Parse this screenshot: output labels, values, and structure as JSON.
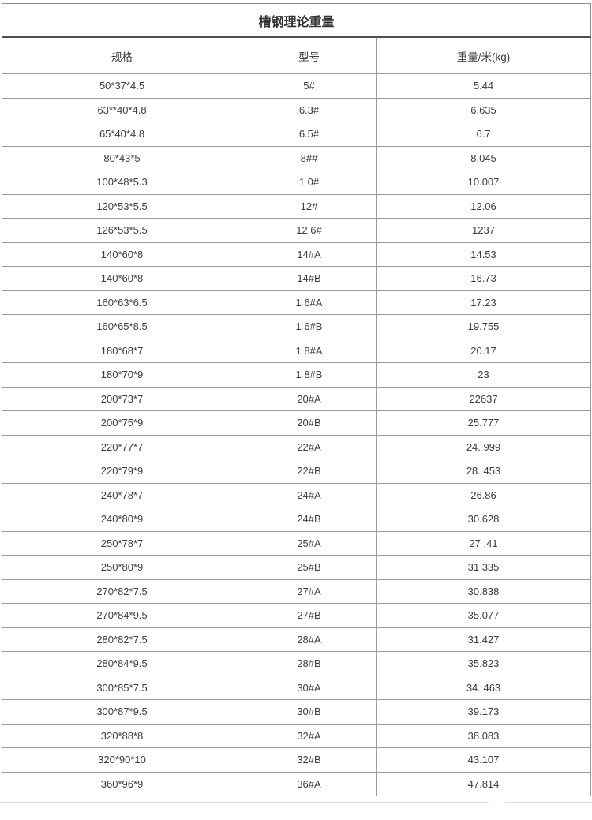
{
  "table": {
    "title": "槽钢理论重量",
    "headers": [
      "规格",
      "型号",
      "重量/米(kg)"
    ],
    "rows": [
      [
        "50*37*4.5",
        "5#",
        "5.44"
      ],
      [
        "63**40*4.8",
        "6.3#",
        "6.635"
      ],
      [
        "65*40*4.8",
        "6.5#",
        "6.7"
      ],
      [
        "80*43*5",
        "8##",
        "8,045"
      ],
      [
        "100*48*5.3",
        "1 0#",
        "10.007"
      ],
      [
        "120*53*5.5",
        "12#",
        "12.06"
      ],
      [
        "126*53*5.5",
        "12.6#",
        "1237"
      ],
      [
        "140*60*8",
        "14#A",
        "14.53"
      ],
      [
        "140*60*8",
        "14#B",
        "16.73"
      ],
      [
        "160*63*6.5",
        "1 6#A",
        "17.23"
      ],
      [
        "160*65*8.5",
        "1 6#B",
        "19.755"
      ],
      [
        "180*68*7",
        "1 8#A",
        "20.17"
      ],
      [
        "180*70*9",
        "1 8#B",
        "23"
      ],
      [
        "200*73*7",
        "20#A",
        "22637"
      ],
      [
        "200*75*9",
        "20#B",
        "25.777"
      ],
      [
        "220*77*7",
        "22#A",
        "24. 999"
      ],
      [
        "220*79*9",
        "22#B",
        "28. 453"
      ],
      [
        "240*78*7",
        "24#A",
        "26.86"
      ],
      [
        "240*80*9",
        "24#B",
        "30.628"
      ],
      [
        "250*78*7",
        "25#A",
        "27 ,41"
      ],
      [
        "250*80*9",
        "25#B",
        "31 335"
      ],
      [
        "270*82*7.5",
        "27#A",
        "30.838"
      ],
      [
        "270*84*9.5",
        "27#B",
        "35.077"
      ],
      [
        "280*82*7.5",
        "28#A",
        "31.427"
      ],
      [
        "280*84*9.5",
        "28#B",
        "35.823"
      ],
      [
        "300*85*7.5",
        "30#A",
        "34. 463"
      ],
      [
        "300*87*9.5",
        "30#B",
        "39.173"
      ],
      [
        "320*88*8",
        "32#A",
        "38.083"
      ],
      [
        "320*90*10",
        "32#B",
        "43.107"
      ],
      [
        "360*96*9",
        "36#A",
        "47.814"
      ]
    ],
    "colors": {
      "border_light": "#9b9b9b",
      "border_dark": "#4f4f4f",
      "text": "#3d3d3d",
      "background": "#ffffff"
    }
  }
}
